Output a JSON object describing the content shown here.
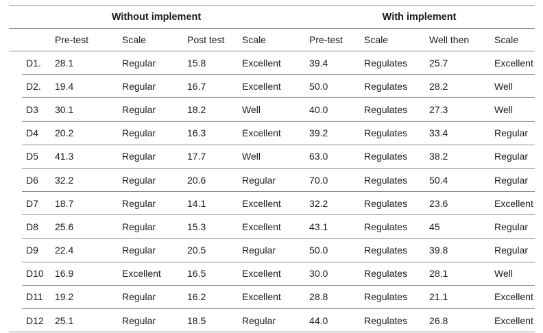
{
  "colors": {
    "border": "#8c8c8c",
    "text": "#1a1a1a"
  },
  "table": {
    "group_headers": [
      {
        "label": "Without implement"
      },
      {
        "label": "With implement"
      }
    ],
    "columns": [
      "",
      "Pre-test",
      "Scale",
      "Post test",
      "Scale",
      "Pre-test",
      "Scale",
      "Well then",
      "Scale"
    ],
    "rows": [
      {
        "id": "D1.",
        "cells": [
          "28.1",
          "Regular",
          "15.8",
          "Excellent",
          "39.4",
          "Regulates",
          "25.7",
          "Excellent"
        ]
      },
      {
        "id": "D2.",
        "cells": [
          "19.4",
          "Regular",
          "16.7",
          "Excellent",
          "50.0",
          "Regulates",
          "28.2",
          "Well"
        ]
      },
      {
        "id": "D3",
        "cells": [
          "30.1",
          "Regular",
          "18.2",
          "Well",
          "40.0",
          "Regulates",
          "27.3",
          "Well"
        ]
      },
      {
        "id": "D4",
        "cells": [
          "20.2",
          "Regular",
          "16.3",
          "Excellent",
          "39.2",
          "Regulates",
          "33.4",
          "Regular"
        ]
      },
      {
        "id": "D5",
        "cells": [
          "41.3",
          "Regular",
          "17.7",
          "Well",
          "63.0",
          "Regulates",
          "38.2",
          "Regular"
        ]
      },
      {
        "id": "D6",
        "cells": [
          "32.2",
          "Regular",
          "20.6",
          "Regular",
          "70.0",
          "Regulates",
          "50.4",
          "Regular"
        ]
      },
      {
        "id": "D7",
        "cells": [
          "18.7",
          "Regular",
          "14.1",
          "Excellent",
          "32.2",
          "Regulates",
          "23.6",
          "Excellent"
        ]
      },
      {
        "id": "D8",
        "cells": [
          "25.6",
          "Regular",
          "15.3",
          "Excellent",
          "43.1",
          "Regulates",
          "45",
          "Regular"
        ]
      },
      {
        "id": "D9",
        "cells": [
          "22.4",
          "Regular",
          "20.5",
          "Regular",
          "50.0",
          "Regulates",
          "39.8",
          "Regular"
        ]
      },
      {
        "id": "D10",
        "cells": [
          "16.9",
          "Excellent",
          "16.5",
          "Excellent",
          "30.0",
          "Regulates",
          "28.1",
          "Well"
        ]
      },
      {
        "id": "D11",
        "cells": [
          "19.2",
          "Regular",
          "16.2",
          "Excellent",
          "28.8",
          "Regulates",
          "21.1",
          "Excellent"
        ]
      },
      {
        "id": "D12",
        "cells": [
          "25.1",
          "Regular",
          "18.5",
          "Regular",
          "44.0",
          "Regulates",
          "26.8",
          "Excellent"
        ]
      }
    ]
  }
}
